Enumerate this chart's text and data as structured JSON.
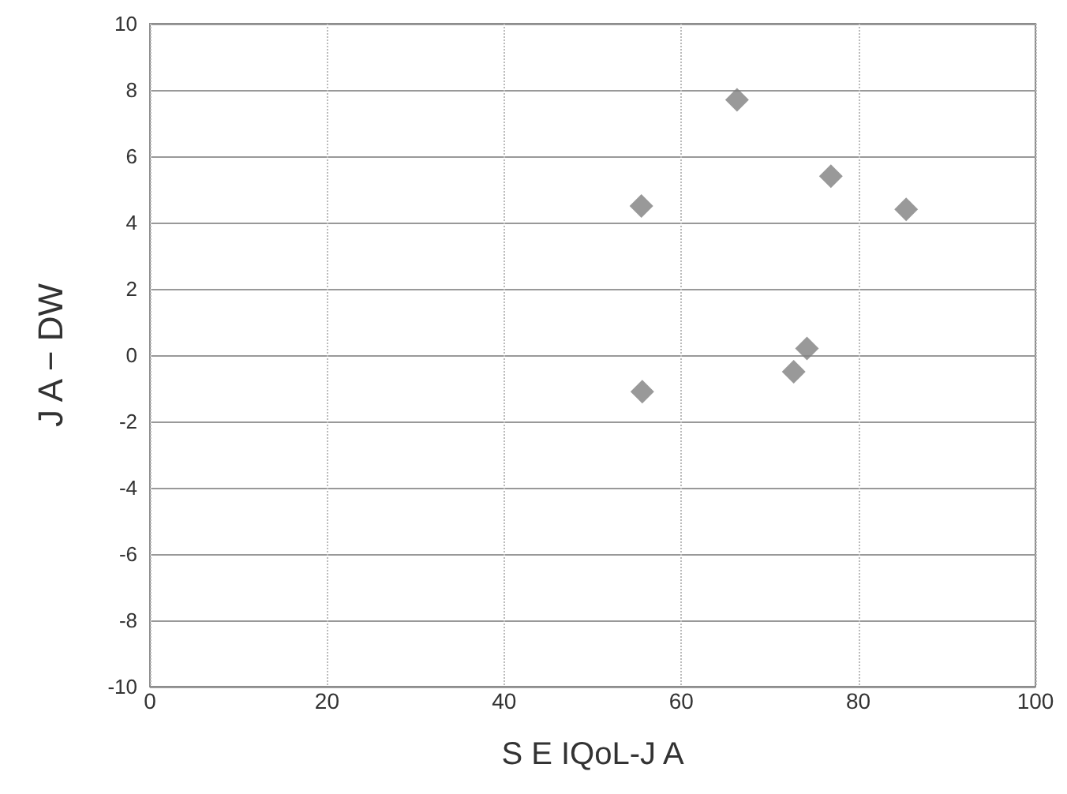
{
  "chart_data": {
    "type": "scatter",
    "xlabel": "S E IQoL-J A",
    "ylabel": "J A − DW",
    "x": [
      55.5,
      66.3,
      76.9,
      85.4,
      74.2,
      72.7,
      55.6
    ],
    "values": [
      4.5,
      7.7,
      5.4,
      4.4,
      0.2,
      -0.5,
      -1.1
    ],
    "color": "#7f7f7f",
    "marker": "diamond",
    "xlim": [
      0,
      100
    ],
    "xticks": [
      0,
      20,
      40,
      60,
      80,
      100
    ],
    "ylim": [
      -10,
      10
    ],
    "yticks": [
      -10,
      -8,
      -6,
      -4,
      -2,
      0,
      2,
      4,
      6,
      8,
      10
    ],
    "grid": true
  }
}
